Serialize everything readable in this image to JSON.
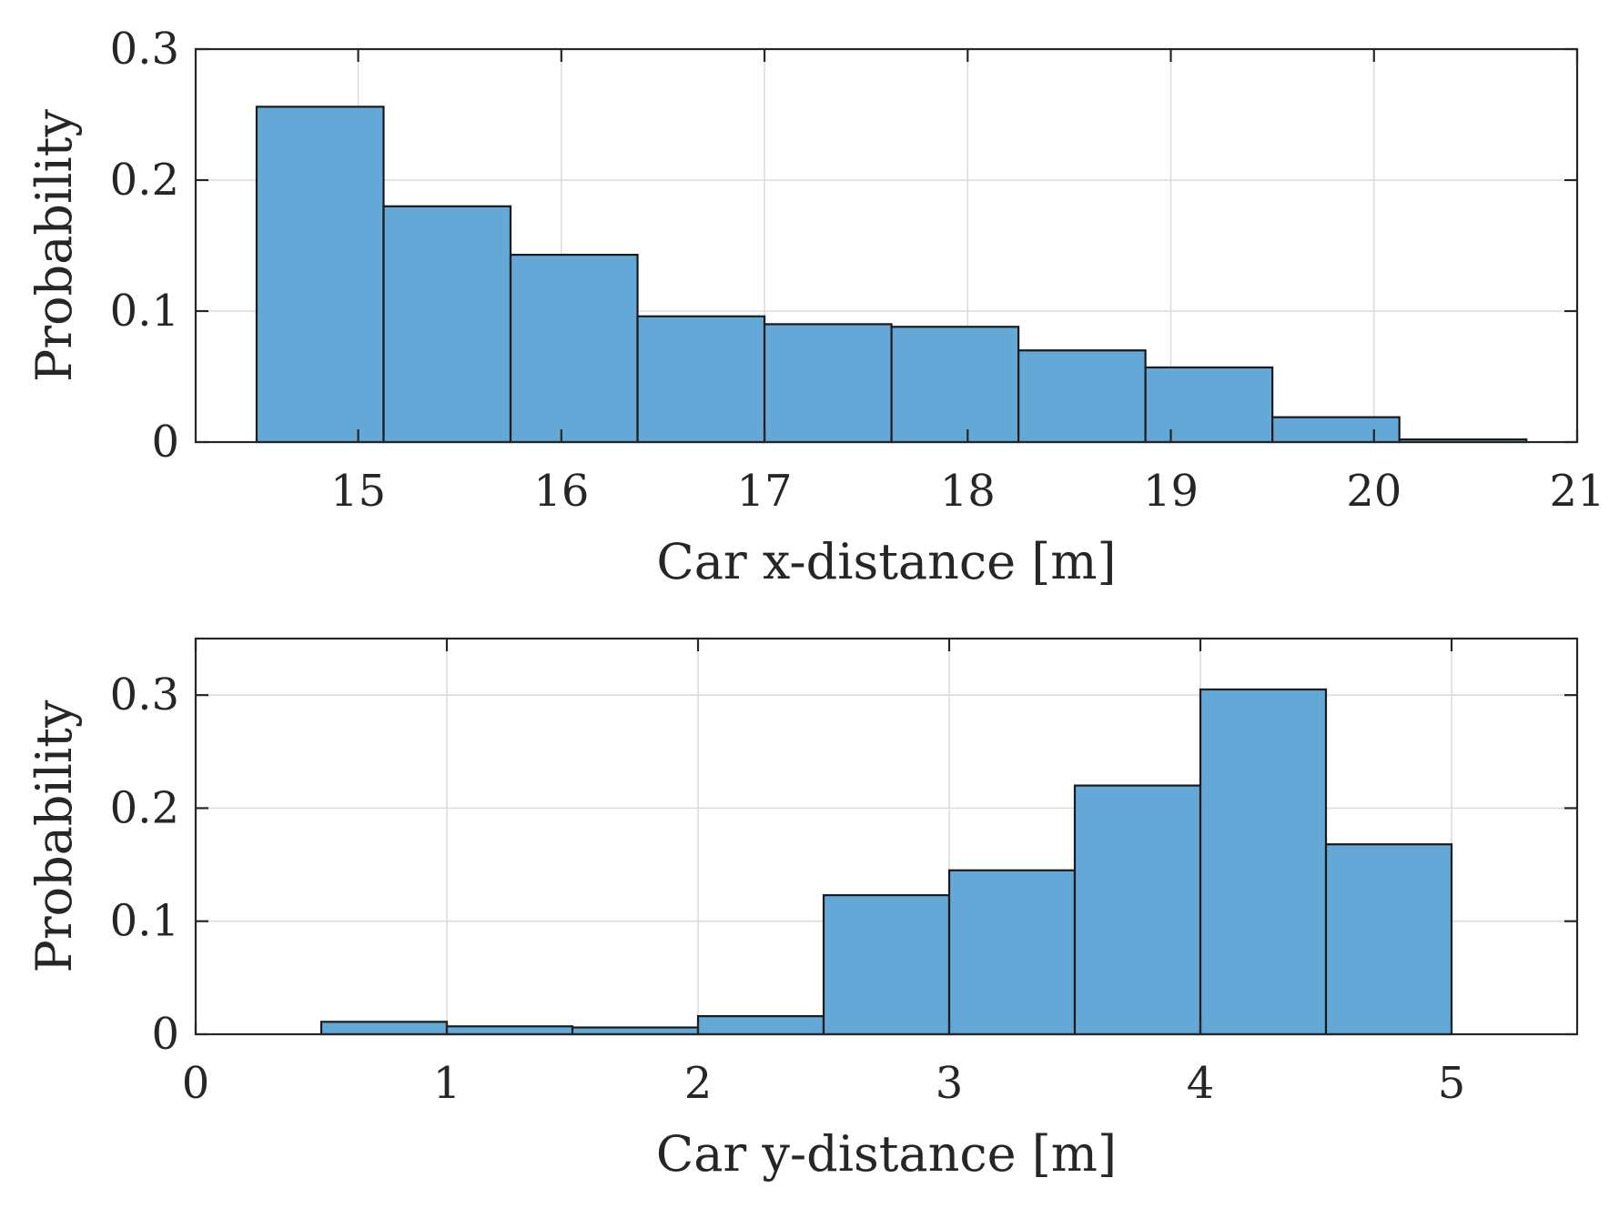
{
  "colors": {
    "bar_fill": "#64a8d8",
    "bar_edge": "#1a1a1a",
    "axis": "#262626",
    "grid": "#dcdcdc"
  },
  "chart_data": [
    {
      "type": "bar",
      "title": "",
      "xlabel": "Car x-distance [m]",
      "ylabel": "Probability",
      "xlim": [
        14.2,
        21
      ],
      "ylim": [
        0,
        0.3
      ],
      "grid": true,
      "xticks": [
        15,
        16,
        17,
        18,
        19,
        20,
        21
      ],
      "xtick_labels": [
        "15",
        "16",
        "17",
        "18",
        "19",
        "20",
        "21"
      ],
      "yticks": [
        0,
        0.1,
        0.2,
        0.3
      ],
      "ytick_labels": [
        "0",
        "0.1",
        "0.2",
        "0.3"
      ],
      "bin_edges": [
        14.5,
        15.125,
        15.75,
        16.375,
        17.0,
        17.625,
        18.25,
        18.875,
        19.5,
        20.125,
        20.75
      ],
      "values": [
        0.256,
        0.18,
        0.143,
        0.096,
        0.09,
        0.088,
        0.07,
        0.057,
        0.019,
        0.002
      ]
    },
    {
      "type": "bar",
      "title": "",
      "xlabel": "Car y-distance [m]",
      "ylabel": "Probability",
      "xlim": [
        0,
        5.5
      ],
      "ylim": [
        0,
        0.35
      ],
      "grid": true,
      "xticks": [
        0,
        1,
        2,
        3,
        4,
        5
      ],
      "xtick_labels": [
        "0",
        "1",
        "2",
        "3",
        "4",
        "5"
      ],
      "yticks": [
        0,
        0.1,
        0.2,
        0.3
      ],
      "ytick_labels": [
        "0",
        "0.1",
        "0.2",
        "0.3"
      ],
      "bin_edges": [
        0.5,
        1.0,
        1.5,
        2.0,
        2.5,
        3.0,
        3.5,
        4.0,
        4.5,
        5.0
      ],
      "values": [
        0.011,
        0.007,
        0.006,
        0.016,
        0.123,
        0.145,
        0.22,
        0.305,
        0.168
      ]
    }
  ]
}
